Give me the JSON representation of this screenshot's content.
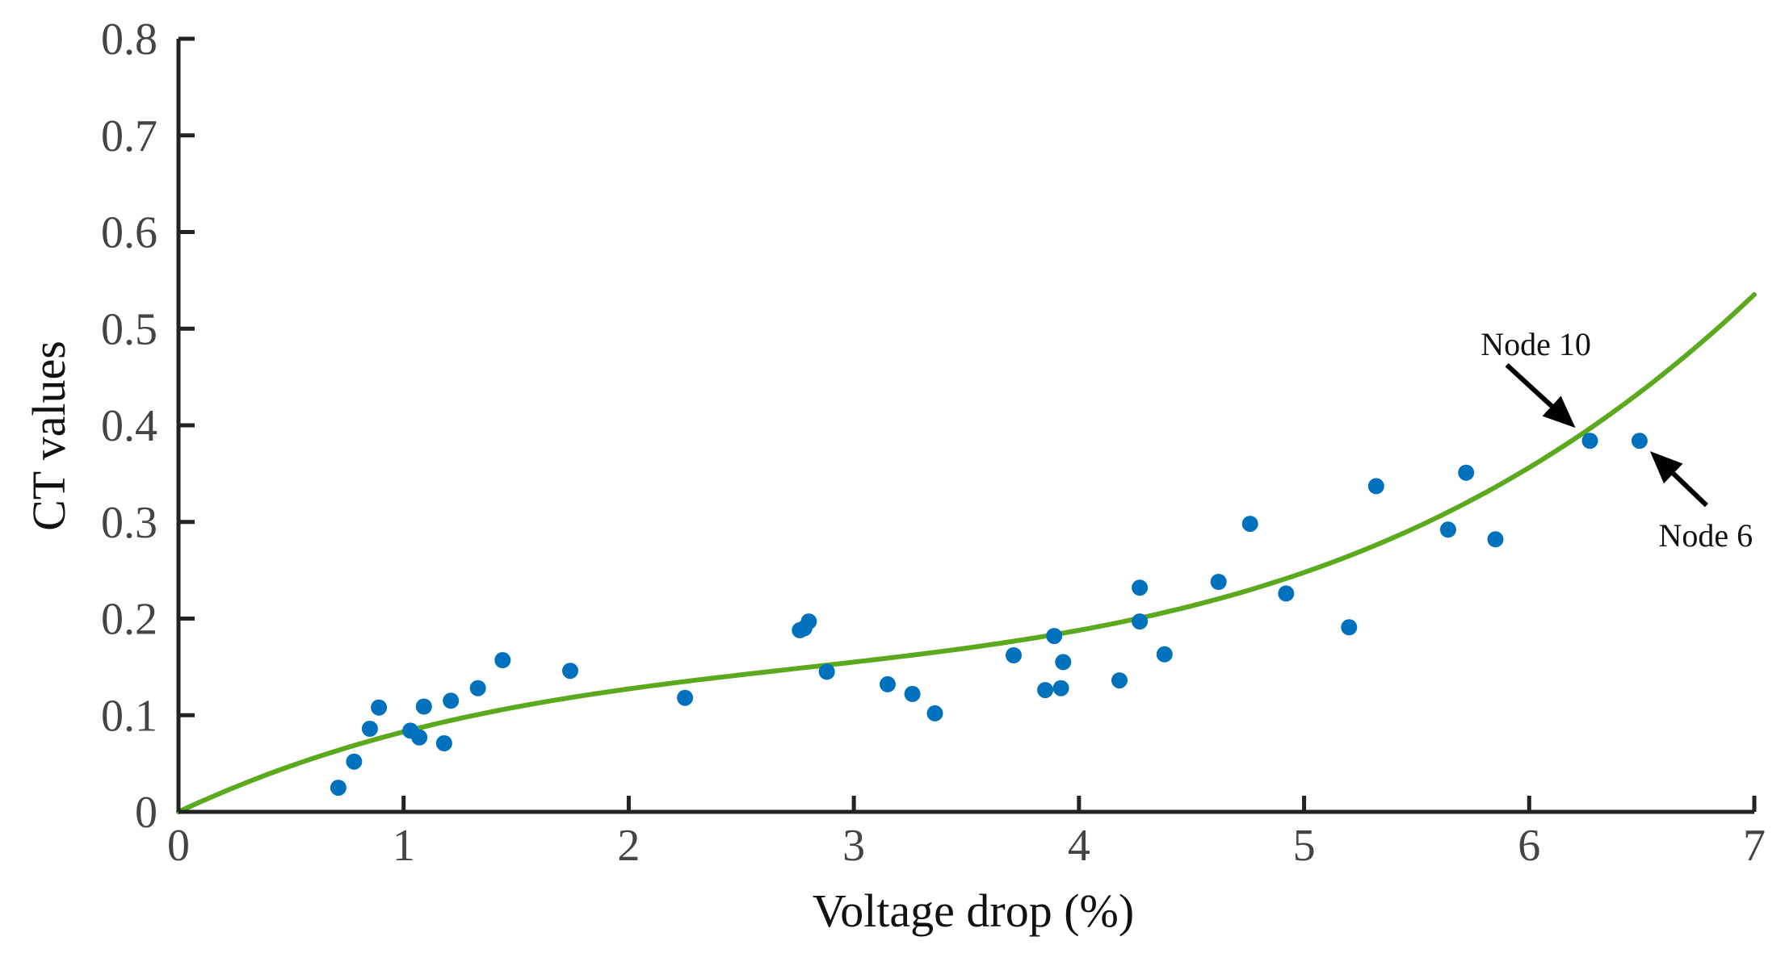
{
  "chart_data": {
    "type": "scatter",
    "title": "",
    "xlabel": "Voltage drop (%)",
    "ylabel": "CT values",
    "xlim": [
      0,
      7
    ],
    "ylim": [
      0,
      0.8
    ],
    "xticks": [
      0,
      1,
      2,
      3,
      4,
      5,
      6,
      7
    ],
    "xtick_labels": [
      "0",
      "1",
      "2",
      "3",
      "4",
      "5",
      "6",
      "7"
    ],
    "yticks": [
      0,
      0.1,
      0.2,
      0.3,
      0.4,
      0.5,
      0.6,
      0.7,
      0.8
    ],
    "ytick_labels": [
      "0",
      "0.1",
      "0.2",
      "0.3",
      "0.4",
      "0.5",
      "0.6",
      "0.7",
      "0.8"
    ],
    "grid": false,
    "series": [
      {
        "name": "CT values",
        "kind": "scatter",
        "color": "#0072BD",
        "points": [
          [
            0.71,
            0.025
          ],
          [
            0.78,
            0.052
          ],
          [
            0.85,
            0.086
          ],
          [
            0.89,
            0.108
          ],
          [
            1.03,
            0.084
          ],
          [
            1.07,
            0.077
          ],
          [
            1.09,
            0.109
          ],
          [
            1.18,
            0.071
          ],
          [
            1.21,
            0.115
          ],
          [
            1.33,
            0.128
          ],
          [
            1.44,
            0.157
          ],
          [
            1.74,
            0.146
          ],
          [
            2.25,
            0.118
          ],
          [
            2.76,
            0.188
          ],
          [
            2.78,
            0.19
          ],
          [
            2.8,
            0.197
          ],
          [
            2.88,
            0.145
          ],
          [
            3.15,
            0.132
          ],
          [
            3.26,
            0.122
          ],
          [
            3.36,
            0.102
          ],
          [
            3.71,
            0.162
          ],
          [
            3.85,
            0.126
          ],
          [
            3.89,
            0.182
          ],
          [
            3.92,
            0.128
          ],
          [
            3.93,
            0.155
          ],
          [
            4.18,
            0.136
          ],
          [
            4.27,
            0.232
          ],
          [
            4.27,
            0.197
          ],
          [
            4.38,
            0.163
          ],
          [
            4.62,
            0.238
          ],
          [
            4.76,
            0.298
          ],
          [
            4.92,
            0.226
          ],
          [
            5.2,
            0.191
          ],
          [
            5.32,
            0.337
          ],
          [
            5.64,
            0.292
          ],
          [
            5.72,
            0.351
          ],
          [
            5.85,
            0.282
          ],
          [
            6.27,
            0.384
          ],
          [
            6.49,
            0.384
          ]
        ]
      },
      {
        "name": "Fitted curve",
        "kind": "line",
        "color": "#5BAA1E",
        "x_range": [
          0,
          7
        ],
        "cubic_coefficients": [
          0.00363,
          -0.0301,
          0.1093,
          0.0
        ]
      }
    ],
    "annotations": [
      {
        "text": "Node 10",
        "target": [
          6.27,
          0.384
        ],
        "side": "upper-left"
      },
      {
        "text": "Node 6",
        "target": [
          6.49,
          0.384
        ],
        "side": "lower-right"
      }
    ]
  }
}
